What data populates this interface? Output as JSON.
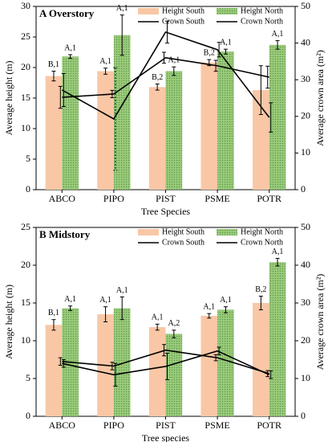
{
  "chart_data": [
    {
      "type": "bar",
      "title": "A Overstory",
      "xlabel": "Tree Species",
      "ylabel": "Average height (m)",
      "y2label": "Average crown area (m²)",
      "categories": [
        "ABCO",
        "PIPO",
        "PIST",
        "PSME",
        "POTR"
      ],
      "ylim": [
        0,
        30
      ],
      "yticks": [
        0,
        5,
        10,
        15,
        20,
        25,
        30
      ],
      "y2lim": [
        0,
        50
      ],
      "y2ticks": [
        0,
        10,
        20,
        30,
        40,
        50
      ],
      "legend": "upper right",
      "series": [
        {
          "name": "Height South",
          "kind": "bar",
          "color": "#f9c7a6",
          "pattern": false,
          "values": [
            18.6,
            19.4,
            16.8,
            20.8,
            16.3
          ],
          "errors": [
            0.8,
            0.5,
            0.5,
            0.5,
            4.0
          ],
          "labels": [
            "B,1",
            "A,1",
            "B,2",
            "B,2",
            null
          ]
        },
        {
          "name": "Height North",
          "kind": "bar",
          "color": "#9ccc7c",
          "pattern": true,
          "values": [
            21.8,
            25.3,
            19.4,
            22.6,
            23.7
          ],
          "errors": [
            0.3,
            3.3,
            0.7,
            0.4,
            0.7
          ],
          "labels": [
            "A,1",
            "A,1",
            "A,1",
            "A,1",
            "A,1"
          ]
        },
        {
          "name": "Crown South",
          "kind": "line",
          "axis": "y2",
          "color": "#000000",
          "values": [
            25.2,
            26.1,
            36.0,
            33.8,
            30.7
          ],
          "errors": [
            3.0,
            1.0,
            1.5,
            1.5,
            3.0
          ]
        },
        {
          "name": "Crown North",
          "kind": "line",
          "axis": "y2",
          "color": "#000000",
          "values": [
            27.2,
            19.3,
            43.0,
            38.2,
            19.7
          ],
          "errors": [
            4.5,
            14.0,
            3.0,
            2.0,
            4.0
          ]
        }
      ]
    },
    {
      "type": "bar",
      "title": "B Midstory",
      "xlabel": "Tree species",
      "ylabel": "Average height (m)",
      "y2label": "Average crown area (m²)",
      "categories": [
        "ABCO",
        "PIPO",
        "PIST",
        "PSME",
        "POTR"
      ],
      "ylim": [
        0,
        25
      ],
      "yticks": [
        0,
        5,
        10,
        15,
        20,
        25
      ],
      "y2lim": [
        0,
        50
      ],
      "y2ticks": [
        0,
        10,
        20,
        30,
        40,
        50
      ],
      "legend": "upper right",
      "series": [
        {
          "name": "Height South",
          "kind": "bar",
          "color": "#f9c7a6",
          "pattern": false,
          "values": [
            12.1,
            13.5,
            11.8,
            13.3,
            15.0
          ],
          "errors": [
            0.7,
            1.0,
            0.4,
            0.3,
            0.9
          ],
          "labels": [
            "B,1",
            "A,1",
            "A,1",
            "A,1",
            "B,2"
          ]
        },
        {
          "name": "Height North",
          "kind": "bar",
          "color": "#9ccc7c",
          "pattern": true,
          "values": [
            14.3,
            14.3,
            10.9,
            14.1,
            20.4
          ],
          "errors": [
            0.3,
            1.5,
            0.5,
            0.4,
            0.5
          ],
          "labels": [
            "A,1",
            "A,1",
            "A,2",
            "A,1",
            "A,1"
          ]
        },
        {
          "name": "Crown South",
          "kind": "line",
          "axis": "y2",
          "color": "#000000",
          "values": [
            14.5,
            13.3,
            17.5,
            15.5,
            11.3
          ],
          "errors": [
            1.0,
            1.0,
            1.5,
            0.8,
            0.8
          ]
        },
        {
          "name": "Crown North",
          "kind": "line",
          "axis": "y2",
          "color": "#000000",
          "values": [
            14.0,
            11.0,
            13.2,
            17.3,
            11.0
          ],
          "errors": [
            1.0,
            3.0,
            3.5,
            1.0,
            1.0
          ]
        }
      ]
    }
  ]
}
